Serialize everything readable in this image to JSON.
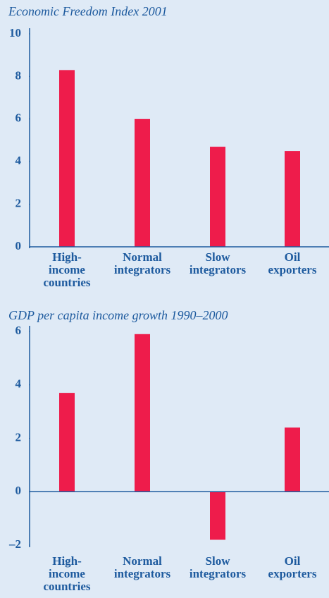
{
  "chart_data": [
    {
      "type": "bar",
      "title": "Economic Freedom Index 2001",
      "categories": [
        [
          "High-",
          "income",
          "countries"
        ],
        [
          "Normal",
          "integrators"
        ],
        [
          "Slow",
          "integrators"
        ],
        [
          "Oil",
          "exporters"
        ]
      ],
      "values": [
        8.3,
        6.0,
        4.7,
        4.5
      ],
      "color": "#ee1c4b",
      "ylim": [
        0,
        10
      ],
      "yticks": [
        0,
        2,
        4,
        6,
        8,
        10
      ]
    },
    {
      "type": "bar",
      "title": "GDP per capita income growth 1990–2000",
      "categories": [
        [
          "High-",
          "income",
          "countries"
        ],
        [
          "Normal",
          "integrators"
        ],
        [
          "Slow",
          "integrators"
        ],
        [
          "Oil",
          "exporters"
        ]
      ],
      "values": [
        3.7,
        5.9,
        -1.8,
        2.4
      ],
      "color": "#ee1c4b",
      "ylim": [
        -2,
        6
      ],
      "yticks": [
        {
          "value": -2,
          "label": "–2"
        },
        0,
        2,
        4,
        6
      ]
    }
  ]
}
